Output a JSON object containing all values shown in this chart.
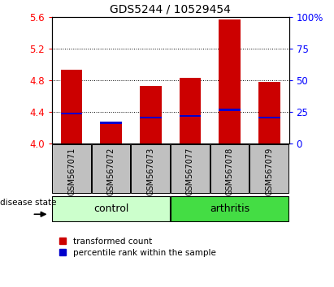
{
  "title": "GDS5244 / 10529454",
  "samples": [
    "GSM567071",
    "GSM567072",
    "GSM567073",
    "GSM567077",
    "GSM567078",
    "GSM567079"
  ],
  "red_values": [
    4.93,
    4.28,
    4.73,
    4.83,
    5.57,
    4.78
  ],
  "blue_values": [
    4.38,
    4.265,
    4.33,
    4.35,
    4.43,
    4.33
  ],
  "ylim_left": [
    4.0,
    5.6
  ],
  "ylim_right": [
    0,
    100
  ],
  "yticks_left": [
    4.0,
    4.4,
    4.8,
    5.2,
    5.6
  ],
  "yticks_right": [
    0,
    25,
    50,
    75,
    100
  ],
  "control_indices": [
    0,
    1,
    2
  ],
  "arthritis_indices": [
    3,
    4,
    5
  ],
  "control_color_light": "#ccffcc",
  "control_color": "#ccffcc",
  "arthritis_color": "#44dd44",
  "group_label": "disease state",
  "legend_red": "transformed count",
  "legend_blue": "percentile rank within the sample",
  "bar_width": 0.55,
  "red_color": "#cc0000",
  "blue_color": "#0000cc",
  "xlabel_bg": "#c0c0c0",
  "plot_bg": "#ffffff"
}
